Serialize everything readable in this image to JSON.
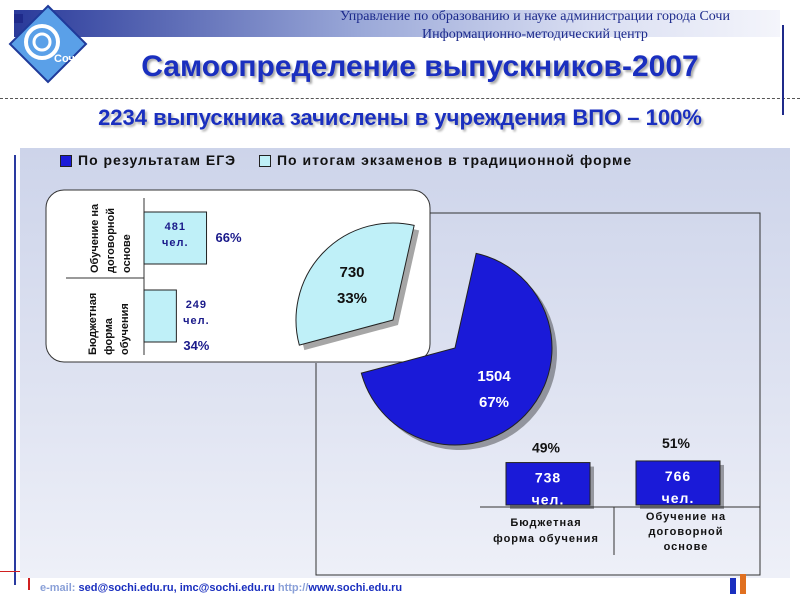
{
  "header": {
    "org_line1": "Управление по образованию и науке администрации  города Сочи",
    "org_line2": "Информационно-методический центр"
  },
  "logo_text": "Сочи",
  "title": "Самоопределение выпускников-2007",
  "subtitle": "2234 выпускника зачислены в учреждения ВПО – 100%",
  "footer": {
    "email_label": "e-mail:",
    "emails": "sed@sochi.edu.ru,  imc@sochi.edu.ru",
    "http_label": "http://",
    "site": "www.sochi.edu.ru"
  },
  "colors": {
    "ege": "#1a1ad8",
    "traditional": "#bff0f8",
    "title": "#1a2fbf"
  },
  "chart_data": [
    {
      "type": "pie",
      "legend": [
        "По результатам ЕГЭ",
        "По итогам экзаменов в традиционной форме"
      ],
      "slices": [
        {
          "name": "По результатам ЕГЭ",
          "value": 1504,
          "label": "1504",
          "pct": "67%"
        },
        {
          "name": "По итогам экзаменов в традиционной форме",
          "value": 730,
          "label": "730",
          "pct": "33%"
        }
      ]
    },
    {
      "type": "bar",
      "categories": [
        "Бюджетная форма обучения",
        "Обучение на договорной основе"
      ],
      "values": [
        738,
        766
      ],
      "value_labels": [
        "738 чел.",
        "766 чел."
      ],
      "pct_labels": [
        "49%",
        "51%"
      ]
    },
    {
      "type": "bar",
      "orientation": "horizontal",
      "categories": [
        "Обучение на договорной основе",
        "Бюджетная форма обучения"
      ],
      "values": [
        481,
        249
      ],
      "value_labels": [
        "481 чел.",
        "249 чел."
      ],
      "pct_labels": [
        "66%",
        "34%"
      ]
    }
  ]
}
